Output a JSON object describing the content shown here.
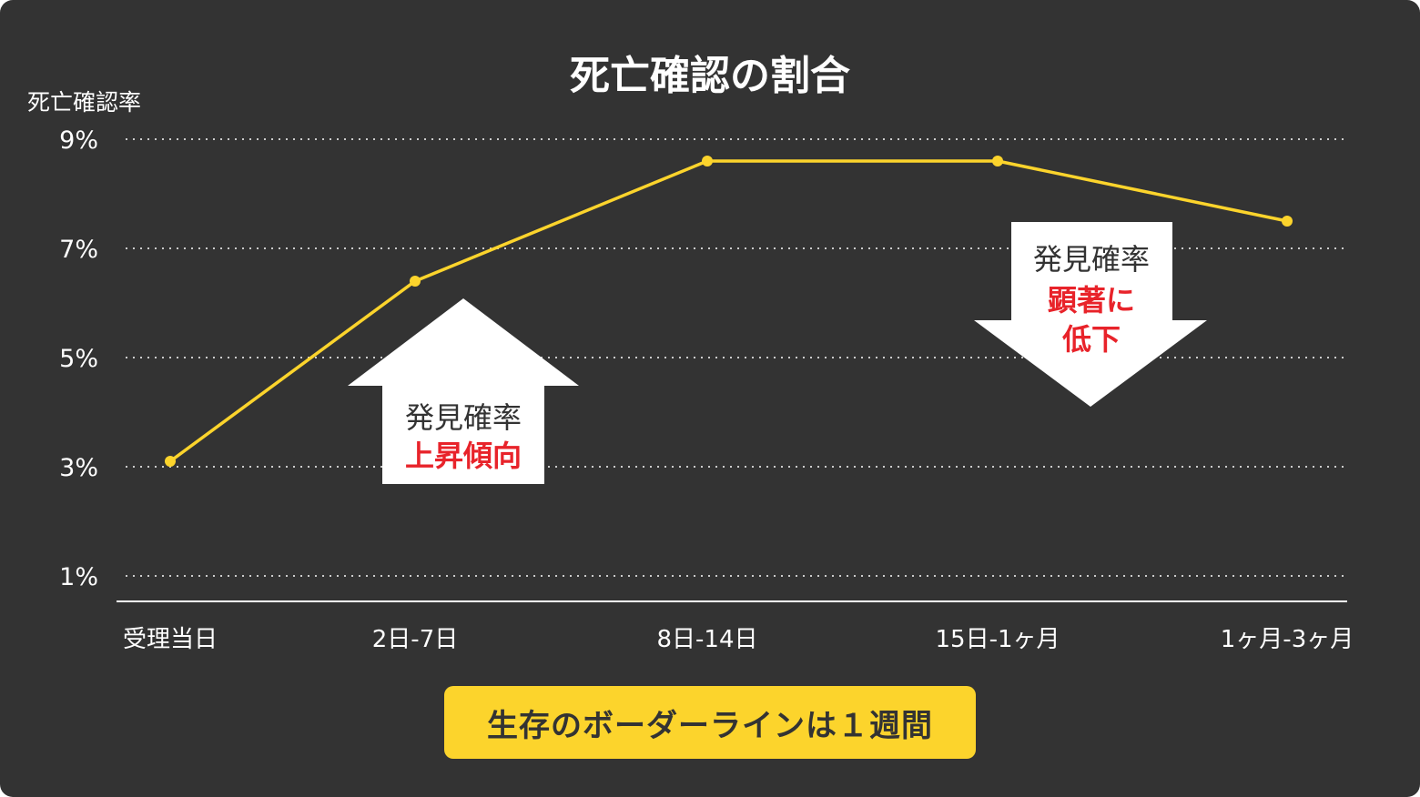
{
  "chart_data": {
    "type": "line",
    "title": "死亡確認の割合",
    "ylabel": "死亡確認率",
    "xlabel": "",
    "categories": [
      "受理当日",
      "2日-7日",
      "8日-14日",
      "15日-1ヶ月",
      "1ヶ月-3ヶ月"
    ],
    "series": [
      {
        "name": "死亡確認率",
        "values": [
          3.1,
          6.4,
          8.6,
          8.6,
          7.5
        ]
      }
    ],
    "ylim": [
      0.5,
      9.5
    ],
    "yticks": [
      {
        "value": 9,
        "label": "9%"
      },
      {
        "value": 7,
        "label": "7%"
      },
      {
        "value": 5,
        "label": "5%"
      },
      {
        "value": 3,
        "label": "3%"
      },
      {
        "value": 1,
        "label": "1%"
      }
    ],
    "grid": true,
    "annotations": [
      {
        "direction": "up",
        "line1": "発見確率",
        "line2": "上昇傾向"
      },
      {
        "direction": "down",
        "line1": "発見確率",
        "line2": "顕著に",
        "line3": "低下"
      }
    ]
  },
  "colors": {
    "background": "#333333",
    "line": "#fcd42c",
    "highlight_text": "#e8232a",
    "grid": "#cccccc",
    "text": "#ffffff",
    "arrow_text": "#333333"
  },
  "footer": {
    "label": "生存のボーダーラインは１週間"
  }
}
